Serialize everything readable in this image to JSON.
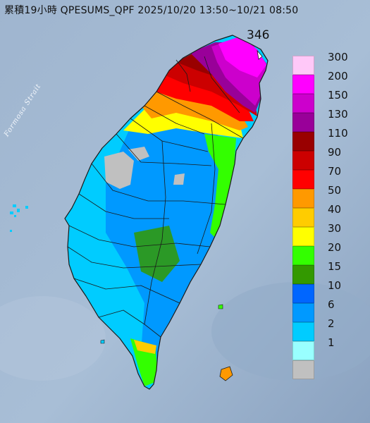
{
  "title": "累積19小時 QPESUMS_QPF 2025/10/20 13:50~10/21 08:50",
  "max_value": "346",
  "strait_label": "Formosa Strait",
  "legend": [
    {
      "label": "300",
      "color": "#ffc8f8"
    },
    {
      "label": "200",
      "color": "#ff00ff"
    },
    {
      "label": "150",
      "color": "#cc00cc"
    },
    {
      "label": "130",
      "color": "#990099"
    },
    {
      "label": "110",
      "color": "#990000"
    },
    {
      "label": "90",
      "color": "#cc0000"
    },
    {
      "label": "70",
      "color": "#ff0000"
    },
    {
      "label": "50",
      "color": "#ff9900"
    },
    {
      "label": "40",
      "color": "#ffcc00"
    },
    {
      "label": "30",
      "color": "#ffff00"
    },
    {
      "label": "20",
      "color": "#33ff00"
    },
    {
      "label": "15",
      "color": "#339900"
    },
    {
      "label": "10",
      "color": "#0066ff"
    },
    {
      "label": "6",
      "color": "#0099ff"
    },
    {
      "label": "2",
      "color": "#00ccff"
    },
    {
      "label": "1",
      "color": "#99ffff"
    },
    {
      "label": "",
      "color": "#c0c0c0"
    }
  ]
}
